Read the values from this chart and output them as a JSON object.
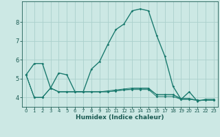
{
  "xlabel": "Humidex (Indice chaleur)",
  "x": [
    0,
    1,
    2,
    3,
    4,
    5,
    6,
    7,
    8,
    9,
    10,
    11,
    12,
    13,
    14,
    15,
    16,
    17,
    18,
    19,
    20,
    21,
    22,
    23
  ],
  "series": [
    [
      5.2,
      5.8,
      5.8,
      4.5,
      5.3,
      5.2,
      4.3,
      4.3,
      5.5,
      5.9,
      6.8,
      7.6,
      7.9,
      8.6,
      8.7,
      8.6,
      7.3,
      6.2,
      4.6,
      3.9,
      4.3,
      3.8,
      3.9,
      3.9
    ],
    [
      5.2,
      4.0,
      4.0,
      4.5,
      4.3,
      4.3,
      4.3,
      4.3,
      4.3,
      4.3,
      4.3,
      4.35,
      4.4,
      4.45,
      4.45,
      4.45,
      4.15,
      4.15,
      4.15,
      3.9,
      3.9,
      3.85,
      3.85,
      3.85
    ],
    [
      5.2,
      4.0,
      4.0,
      4.5,
      4.3,
      4.3,
      4.3,
      4.3,
      4.3,
      4.3,
      4.35,
      4.4,
      4.45,
      4.5,
      4.5,
      4.5,
      4.15,
      4.15,
      4.15,
      3.95,
      3.95,
      3.85,
      3.85,
      3.85
    ],
    [
      5.2,
      4.0,
      4.0,
      4.5,
      4.3,
      4.3,
      4.3,
      4.3,
      4.3,
      4.3,
      4.3,
      4.35,
      4.4,
      4.42,
      4.42,
      4.42,
      4.05,
      4.05,
      4.05,
      3.9,
      3.9,
      3.85,
      3.85,
      3.85
    ]
  ],
  "line_color": "#1a7a6e",
  "bg_color": "#cce8e4",
  "grid_color": "#aad0cc",
  "tick_color": "#1a5a52",
  "xlim": [
    -0.5,
    23.5
  ],
  "ylim": [
    3.5,
    9.1
  ],
  "yticks": [
    4,
    5,
    6,
    7,
    8
  ],
  "xticks": [
    0,
    1,
    2,
    3,
    4,
    5,
    6,
    7,
    8,
    9,
    10,
    11,
    12,
    13,
    14,
    15,
    16,
    17,
    18,
    19,
    20,
    21,
    22,
    23
  ],
  "xtick_fontsize": 5.0,
  "ytick_fontsize": 6.0,
  "xlabel_fontsize": 6.5,
  "marker_size": 1.8,
  "linewidth_main": 1.0,
  "linewidth_other": 0.7
}
